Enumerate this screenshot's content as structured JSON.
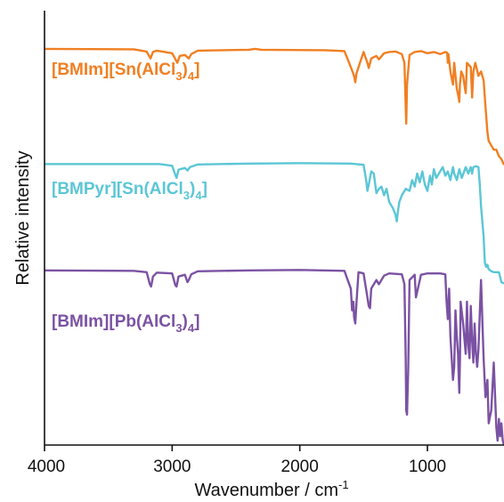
{
  "chart_data": {
    "type": "line",
    "xlabel": "Wavenumber / cm",
    "xlabel_sup": "-1",
    "ylabel": "Relative intensity",
    "x_reversed": true,
    "xlim": [
      4000,
      400
    ],
    "ylim": [
      0,
      1
    ],
    "x_ticks": [
      4000,
      3000,
      2000,
      1000
    ],
    "tick_labels": [
      "4000",
      "3000",
      "2000",
      "1000"
    ],
    "grid": false,
    "series": [
      {
        "label_parts": [
          "[BMIm][Sn(AlCl",
          "3",
          ")",
          "4",
          "]"
        ],
        "color": "#F07F22",
        "x": [
          4000,
          3300,
          3200,
          3170,
          3150,
          3120,
          3000,
          2970,
          2960,
          2940,
          2900,
          2870,
          2850,
          2800,
          2400,
          2350,
          2300,
          1800,
          1650,
          1600,
          1575,
          1565,
          1555,
          1500,
          1470,
          1460,
          1440,
          1400,
          1380,
          1340,
          1300,
          1250,
          1200,
          1180,
          1170,
          1166,
          1160,
          1140,
          1100,
          1050,
          1000,
          950,
          900,
          860,
          845,
          840,
          835,
          820,
          800,
          790,
          770,
          755,
          750,
          745,
          735,
          720,
          700,
          690,
          660,
          650,
          640,
          625,
          600,
          580,
          560,
          545,
          530,
          520,
          500,
          480,
          460,
          440,
          420,
          400
        ],
        "y": [
          0.912,
          0.911,
          0.906,
          0.89,
          0.905,
          0.908,
          0.902,
          0.886,
          0.88,
          0.896,
          0.898,
          0.89,
          0.9,
          0.908,
          0.91,
          0.912,
          0.91,
          0.909,
          0.907,
          0.87,
          0.85,
          0.835,
          0.856,
          0.905,
          0.88,
          0.868,
          0.89,
          0.896,
          0.888,
          0.902,
          0.905,
          0.906,
          0.9,
          0.88,
          0.78,
          0.74,
          0.83,
          0.898,
          0.905,
          0.907,
          0.902,
          0.905,
          0.9,
          0.905,
          0.903,
          0.88,
          0.9,
          0.86,
          0.83,
          0.88,
          0.82,
          0.8,
          0.79,
          0.83,
          0.86,
          0.85,
          0.81,
          0.88,
          0.87,
          0.8,
          0.86,
          0.88,
          0.85,
          0.86,
          0.84,
          0.78,
          0.72,
          0.7,
          0.69,
          0.68,
          0.68,
          0.665,
          0.658,
          0.645
        ]
      },
      {
        "label_parts": [
          "[BMPyr][Sn(AlCl",
          "3",
          ")",
          "4",
          "]"
        ],
        "color": "#5BC6D6",
        "x": [
          4000,
          3100,
          3000,
          2975,
          2965,
          2950,
          2900,
          2880,
          2860,
          2800,
          2400,
          2000,
          1600,
          1500,
          1480,
          1470,
          1460,
          1440,
          1420,
          1400,
          1380,
          1360,
          1340,
          1320,
          1300,
          1270,
          1250,
          1240,
          1230,
          1220,
          1200,
          1170,
          1140,
          1120,
          1100,
          1080,
          1060,
          1040,
          1020,
          1000,
          980,
          965,
          950,
          930,
          900,
          880,
          860,
          840,
          820,
          800,
          790,
          770,
          750,
          730,
          700,
          680,
          660,
          650,
          640,
          620,
          600,
          590,
          580,
          560,
          550,
          540,
          530,
          520,
          500,
          480,
          460,
          440,
          420,
          400
        ],
        "y": [
          0.647,
          0.647,
          0.643,
          0.622,
          0.615,
          0.634,
          0.638,
          0.632,
          0.64,
          0.646,
          0.648,
          0.649,
          0.648,
          0.645,
          0.61,
          0.585,
          0.6,
          0.63,
          0.625,
          0.58,
          0.59,
          0.595,
          0.575,
          0.59,
          0.56,
          0.545,
          0.53,
          0.515,
          0.54,
          0.56,
          0.575,
          0.59,
          0.585,
          0.61,
          0.595,
          0.625,
          0.605,
          0.63,
          0.6,
          0.585,
          0.62,
          0.6,
          0.635,
          0.615,
          0.63,
          0.64,
          0.62,
          0.63,
          0.61,
          0.64,
          0.625,
          0.61,
          0.635,
          0.615,
          0.64,
          0.625,
          0.64,
          0.625,
          0.64,
          0.642,
          0.64,
          0.6,
          0.55,
          0.48,
          0.42,
          0.41,
          0.415,
          0.405,
          0.4,
          0.398,
          0.398,
          0.398,
          0.375,
          0.372
        ]
      },
      {
        "label_parts": [
          "[BMIm][Pb(AlCl",
          "3",
          ")",
          "4",
          "]"
        ],
        "color": "#7B52A3",
        "x": [
          4000,
          3300,
          3200,
          3175,
          3165,
          3150,
          3120,
          3000,
          2975,
          2965,
          2950,
          2900,
          2880,
          2870,
          2850,
          2800,
          2400,
          2000,
          1650,
          1600,
          1590,
          1580,
          1575,
          1565,
          1555,
          1540,
          1500,
          1470,
          1460,
          1450,
          1440,
          1400,
          1380,
          1340,
          1300,
          1200,
          1180,
          1170,
          1166,
          1160,
          1150,
          1140,
          1100,
          1090,
          1050,
          1000,
          900,
          860,
          850,
          840,
          830,
          820,
          800,
          790,
          780,
          770,
          760,
          755,
          750,
          745,
          740,
          720,
          700,
          690,
          680,
          670,
          660,
          650,
          640,
          630,
          620,
          610,
          600,
          580,
          560,
          545,
          530,
          520,
          500,
          480,
          460,
          450,
          440,
          430,
          420,
          410,
          400
        ],
        "y": [
          0.402,
          0.401,
          0.398,
          0.37,
          0.365,
          0.388,
          0.397,
          0.395,
          0.368,
          0.365,
          0.388,
          0.392,
          0.375,
          0.38,
          0.393,
          0.4,
          0.402,
          0.403,
          0.401,
          0.36,
          0.31,
          0.33,
          0.295,
          0.28,
          0.33,
          0.398,
          0.395,
          0.34,
          0.32,
          0.315,
          0.36,
          0.38,
          0.37,
          0.39,
          0.395,
          0.393,
          0.37,
          0.2,
          0.08,
          0.07,
          0.18,
          0.38,
          0.392,
          0.34,
          0.392,
          0.395,
          0.395,
          0.393,
          0.33,
          0.29,
          0.36,
          0.25,
          0.15,
          0.18,
          0.31,
          0.25,
          0.21,
          0.16,
          0.12,
          0.19,
          0.33,
          0.28,
          0.21,
          0.33,
          0.23,
          0.2,
          0.32,
          0.24,
          0.19,
          0.28,
          0.21,
          0.18,
          0.22,
          0.38,
          0.2,
          0.11,
          0.15,
          0.05,
          0.08,
          0.19,
          0.04,
          0.01,
          0.06,
          0.02,
          0.05,
          0.01,
          0.0
        ]
      }
    ]
  }
}
